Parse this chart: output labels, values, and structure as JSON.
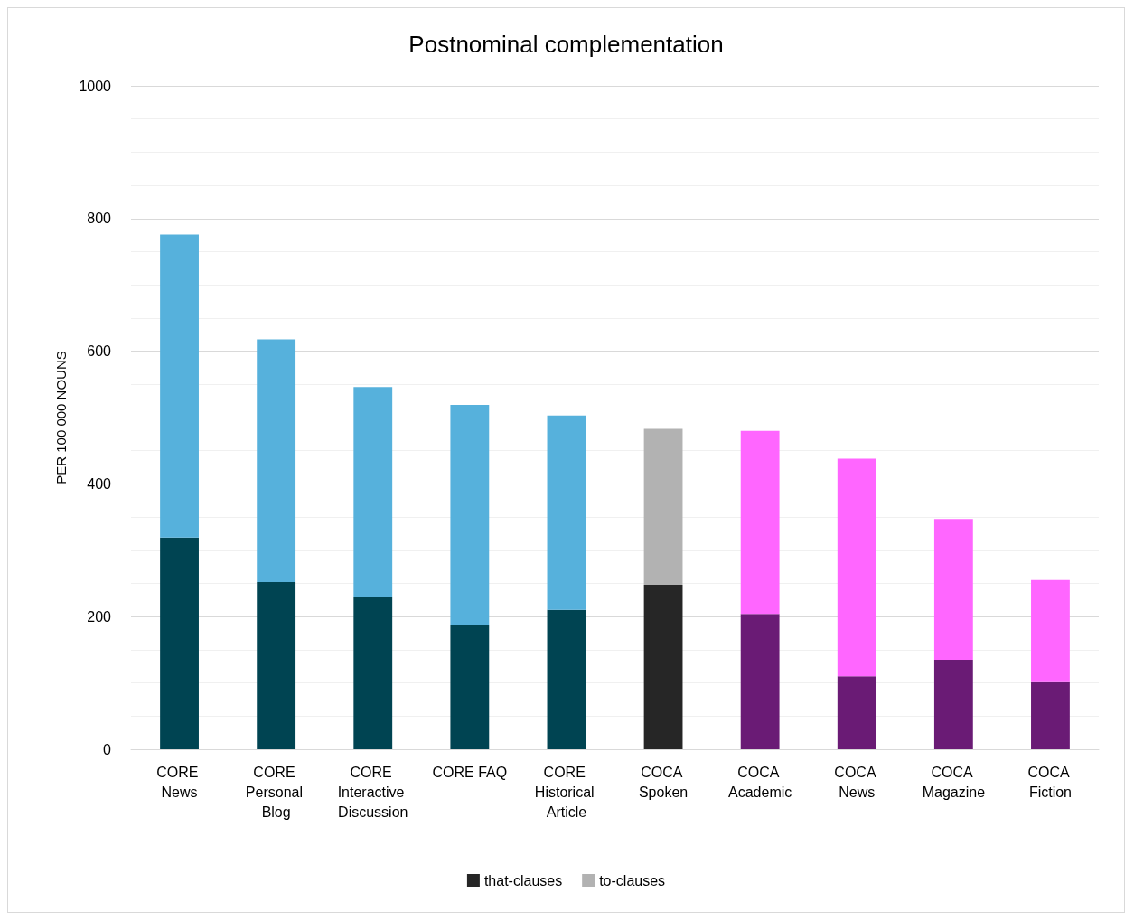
{
  "chart_data": {
    "type": "bar",
    "title": "Postnominal complementation",
    "ylabel": "PER 100 000 NOUNS",
    "categories": [
      "CORE News",
      "CORE Personal Blog",
      "CORE Interactive Discussion",
      "CORE FAQ",
      "CORE Historical Article",
      "COCA Spoken",
      "COCA Academic",
      "COCA News",
      "COCA Magazine",
      "COCA Fiction"
    ],
    "stacked": true,
    "series": [
      {
        "name": "that-clauses",
        "color": "#262626",
        "colors": [
          "#004452",
          "#004452",
          "#004452",
          "#004452",
          "#004452",
          "#262626",
          "#6a1b75",
          "#6a1b75",
          "#6a1b75",
          "#6a1b75"
        ],
        "values": [
          319,
          252,
          229,
          188,
          210,
          248,
          204,
          110,
          135,
          101
        ]
      },
      {
        "name": "to-clauses",
        "color": "#b2b2b2",
        "colors": [
          "#56b1dc",
          "#56b1dc",
          "#56b1dc",
          "#56b1dc",
          "#56b1dc",
          "#b2b2b2",
          "#ff66ff",
          "#ff66ff",
          "#ff66ff",
          "#ff66ff"
        ],
        "values": [
          457,
          366,
          317,
          331,
          293,
          235,
          276,
          328,
          212,
          154
        ]
      }
    ],
    "ylim": [
      0,
      1000
    ],
    "yticks": [
      0,
      200,
      400,
      600,
      800,
      1000
    ],
    "grid": "y",
    "legend": "bottom"
  }
}
